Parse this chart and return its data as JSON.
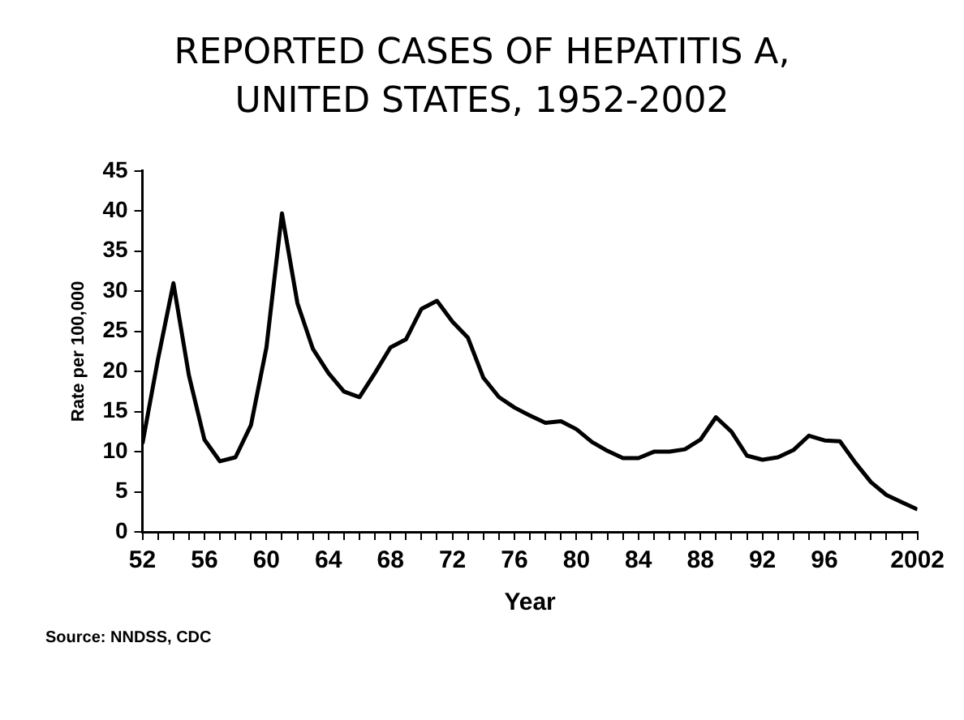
{
  "chart_data": {
    "type": "line",
    "title": "REPORTED CASES OF HEPATITIS A, UNITED STATES, 1952-2002",
    "xlabel": "Year",
    "ylabel": "Rate per 100,000",
    "x": [
      1952,
      1953,
      1954,
      1955,
      1956,
      1957,
      1958,
      1959,
      1960,
      1961,
      1962,
      1963,
      1964,
      1965,
      1966,
      1967,
      1968,
      1969,
      1970,
      1971,
      1972,
      1973,
      1974,
      1975,
      1976,
      1977,
      1978,
      1979,
      1980,
      1981,
      1982,
      1983,
      1984,
      1985,
      1986,
      1987,
      1988,
      1989,
      1990,
      1991,
      1992,
      1993,
      1994,
      1995,
      1996,
      1997,
      1998,
      1999,
      2000,
      2001,
      2002
    ],
    "series": [
      {
        "color": "#000000",
        "values": [
          11,
          21.5,
          31,
          19.5,
          11.5,
          8.8,
          9.3,
          13.3,
          23,
          39.7,
          28.5,
          22.8,
          19.8,
          17.5,
          16.8,
          19.8,
          23,
          24,
          27.8,
          28.8,
          26.2,
          24.2,
          19.2,
          16.8,
          15.5,
          14.5,
          13.6,
          13.8,
          12.8,
          11.2,
          10.1,
          9.2,
          9.2,
          10,
          10,
          10.3,
          11.5,
          14.3,
          12.5,
          9.5,
          9,
          9.3,
          10.2,
          12,
          11.4,
          11.3,
          8.6,
          6.2,
          4.6,
          3.7,
          2.8
        ]
      }
    ],
    "xlim": [
      1952,
      2002
    ],
    "xticks": [
      {
        "value": 1952,
        "label": "52"
      },
      {
        "value": 1953,
        "label": null
      },
      {
        "value": 1954,
        "label": null
      },
      {
        "value": 1955,
        "label": null
      },
      {
        "value": 1956,
        "label": "56"
      },
      {
        "value": 1957,
        "label": null
      },
      {
        "value": 1958,
        "label": null
      },
      {
        "value": 1959,
        "label": null
      },
      {
        "value": 1960,
        "label": "60"
      },
      {
        "value": 1961,
        "label": null
      },
      {
        "value": 1962,
        "label": null
      },
      {
        "value": 1963,
        "label": null
      },
      {
        "value": 1964,
        "label": "64"
      },
      {
        "value": 1965,
        "label": null
      },
      {
        "value": 1966,
        "label": null
      },
      {
        "value": 1967,
        "label": null
      },
      {
        "value": 1968,
        "label": "68"
      },
      {
        "value": 1969,
        "label": null
      },
      {
        "value": 1970,
        "label": null
      },
      {
        "value": 1971,
        "label": null
      },
      {
        "value": 1972,
        "label": "72"
      },
      {
        "value": 1973,
        "label": null
      },
      {
        "value": 1974,
        "label": null
      },
      {
        "value": 1975,
        "label": null
      },
      {
        "value": 1976,
        "label": "76"
      },
      {
        "value": 1977,
        "label": null
      },
      {
        "value": 1978,
        "label": null
      },
      {
        "value": 1979,
        "label": null
      },
      {
        "value": 1980,
        "label": "80"
      },
      {
        "value": 1981,
        "label": null
      },
      {
        "value": 1982,
        "label": null
      },
      {
        "value": 1983,
        "label": null
      },
      {
        "value": 1984,
        "label": "84"
      },
      {
        "value": 1985,
        "label": null
      },
      {
        "value": 1986,
        "label": null
      },
      {
        "value": 1987,
        "label": null
      },
      {
        "value": 1988,
        "label": "88"
      },
      {
        "value": 1989,
        "label": null
      },
      {
        "value": 1990,
        "label": null
      },
      {
        "value": 1991,
        "label": null
      },
      {
        "value": 1992,
        "label": "92"
      },
      {
        "value": 1993,
        "label": null
      },
      {
        "value": 1994,
        "label": null
      },
      {
        "value": 1995,
        "label": null
      },
      {
        "value": 1996,
        "label": "96"
      },
      {
        "value": 1997,
        "label": null
      },
      {
        "value": 1998,
        "label": null
      },
      {
        "value": 1999,
        "label": null
      },
      {
        "value": 2000,
        "label": null
      },
      {
        "value": 2001,
        "label": null
      },
      {
        "value": 2002,
        "label": "2002"
      }
    ],
    "ylim": [
      0,
      45
    ],
    "yticks": [
      0,
      5,
      10,
      15,
      20,
      25,
      30,
      35,
      40,
      45
    ],
    "grid": false,
    "legend": false,
    "marker": "none",
    "line_style": "solid",
    "annotations": [
      "Source: NNDSS, CDC"
    ]
  }
}
